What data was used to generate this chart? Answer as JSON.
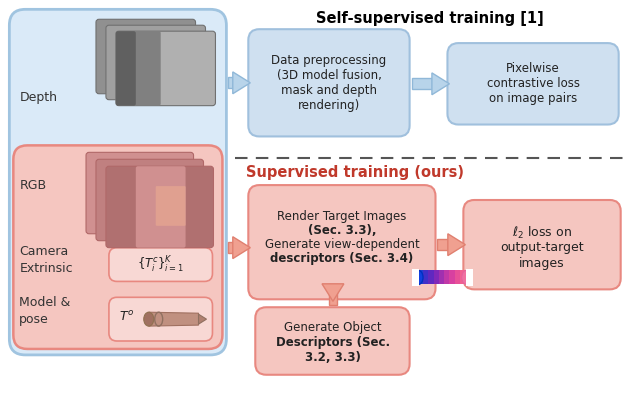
{
  "fig_width": 6.4,
  "fig_height": 3.98,
  "dpi": 100,
  "bg_color": "#ffffff",
  "title_self": "Self-supervised training [1]",
  "title_sup": "Supervised training (ours)",
  "title_self_color": "#000000",
  "title_sup_color": "#c0392b",
  "left_box_blue_fc": "#daeaf8",
  "left_box_blue_ec": "#a0c4e0",
  "left_box_pink_fc": "#f5c6c0",
  "left_box_pink_ec": "#e88880",
  "box_blue_fc": "#cfe0f0",
  "box_blue_ec": "#a0c0dd",
  "box_pink_fc": "#f5c6c0",
  "box_pink_ec": "#e88880",
  "small_box_pink_fc": "#f8d8d4",
  "small_box_pink_ec": "#e88880",
  "arrow_blue_fc": "#b8d4ea",
  "arrow_blue_ec": "#90b8d8",
  "arrow_pink_fc": "#f0a090",
  "arrow_pink_ec": "#e08070",
  "dashed_color": "#555555",
  "depth_stack_colors": [
    "#909090",
    "#a0a0a0",
    "#b0b0b0"
  ],
  "rgb_stack_colors": [
    "#d09090",
    "#c08080",
    "#b07070"
  ],
  "labels": {
    "depth": "Depth",
    "rgb": "RGB",
    "camera": "Camera\nExtrinsic",
    "model": "Model &\npose",
    "data_prep": "Data preprocessing\n(3D model fusion,\nmask and depth\nrendering)",
    "pixelwise": "Pixelwise\ncontrastive loss\non image pairs",
    "render_line1": "Render Target Images",
    "render_line2": "(Sec. 3.3),",
    "render_line3": "Generate view-dependent",
    "render_line4": "descriptors (Sec. 3.4)",
    "l2loss_line1": "ℓ₂ loss on",
    "l2loss_line2": "output-target",
    "l2loss_line3": "images",
    "gen_obj_line1": "Generate Object",
    "gen_obj_line2": "Descriptors (Sec.",
    "gen_obj_line3": "3.2, 3.3)"
  }
}
